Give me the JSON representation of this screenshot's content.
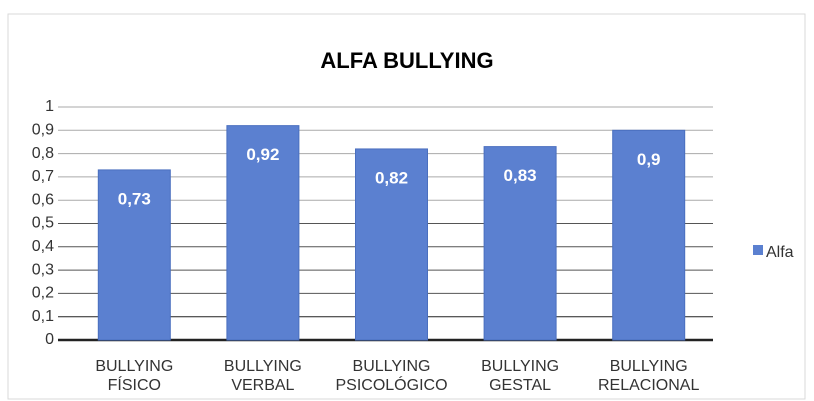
{
  "chart_data": {
    "type": "bar",
    "title": "ALFA BULLYING",
    "categories": [
      "BULLYING FÍSICO",
      "BULLYING VERBAL",
      "BULLYING PSICOLÓGICO",
      "BULLYING GESTAL",
      "BULLYING RELACIONAL"
    ],
    "series": [
      {
        "name": "Alfa",
        "color": "#5b80d0",
        "values": [
          0.73,
          0.92,
          0.82,
          0.83,
          0.9
        ],
        "value_labels": [
          "0,73",
          "0,92",
          "0,82",
          "0,83",
          "0,9"
        ]
      }
    ],
    "ylim": [
      0,
      1
    ],
    "yticks": [
      0,
      {
        "value": 0.1,
        "label": "0,1"
      },
      {
        "value": 0.2,
        "label": "0,2"
      },
      {
        "value": 0.3,
        "label": "0,3"
      },
      {
        "value": 0.4,
        "label": "0,4"
      },
      {
        "value": 0.5,
        "label": "0,5"
      },
      {
        "value": 0.6,
        "label": "0,6"
      },
      {
        "value": 0.7,
        "label": "0,7"
      },
      {
        "value": 0.8,
        "label": "0,8"
      },
      {
        "value": 0.9,
        "label": "0,9"
      },
      1
    ],
    "grid": true,
    "legend": "right"
  }
}
